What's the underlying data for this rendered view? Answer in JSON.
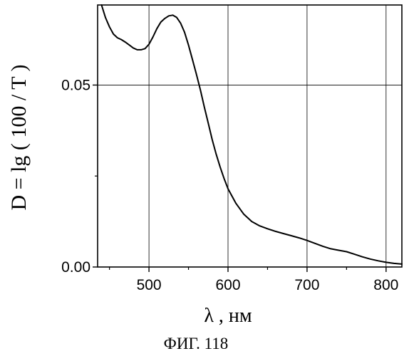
{
  "chart_data": {
    "type": "line",
    "title": "",
    "xlabel": "λ , нм",
    "ylabel": "D = lg ( 100 / T )",
    "caption": "ФИГ. 118",
    "xlim": [
      435,
      820
    ],
    "ylim": [
      0.0,
      0.072
    ],
    "x_ticks": [
      500,
      600,
      700,
      800
    ],
    "x_tick_labels": [
      "500",
      "600",
      "700",
      "800"
    ],
    "y_ticks": [
      0.0,
      0.05
    ],
    "y_tick_labels": [
      "0.00",
      "0.05"
    ],
    "grid": true,
    "line_color": "#000000",
    "series": [
      {
        "x": [
          440,
          445,
          450,
          455,
          460,
          465,
          470,
          475,
          480,
          485,
          490,
          495,
          500,
          505,
          510,
          515,
          520,
          525,
          530,
          535,
          540,
          545,
          550,
          555,
          560,
          565,
          570,
          575,
          580,
          585,
          590,
          595,
          600,
          610,
          620,
          630,
          640,
          650,
          660,
          670,
          680,
          690,
          700,
          710,
          720,
          730,
          740,
          750,
          760,
          770,
          780,
          790,
          800,
          810,
          820
        ],
        "y": [
          0.072,
          0.0685,
          0.066,
          0.064,
          0.063,
          0.0625,
          0.0618,
          0.061,
          0.0602,
          0.0597,
          0.0597,
          0.06,
          0.0612,
          0.0632,
          0.0655,
          0.0673,
          0.0683,
          0.069,
          0.0692,
          0.0686,
          0.067,
          0.0645,
          0.061,
          0.057,
          0.053,
          0.0487,
          0.044,
          0.0395,
          0.035,
          0.031,
          0.0275,
          0.0243,
          0.0215,
          0.0175,
          0.0145,
          0.0125,
          0.0113,
          0.0105,
          0.0098,
          0.0092,
          0.0086,
          0.008,
          0.0073,
          0.0065,
          0.0057,
          0.005,
          0.0046,
          0.0042,
          0.0035,
          0.0028,
          0.0022,
          0.0017,
          0.0013,
          0.001,
          0.0008
        ]
      }
    ]
  }
}
